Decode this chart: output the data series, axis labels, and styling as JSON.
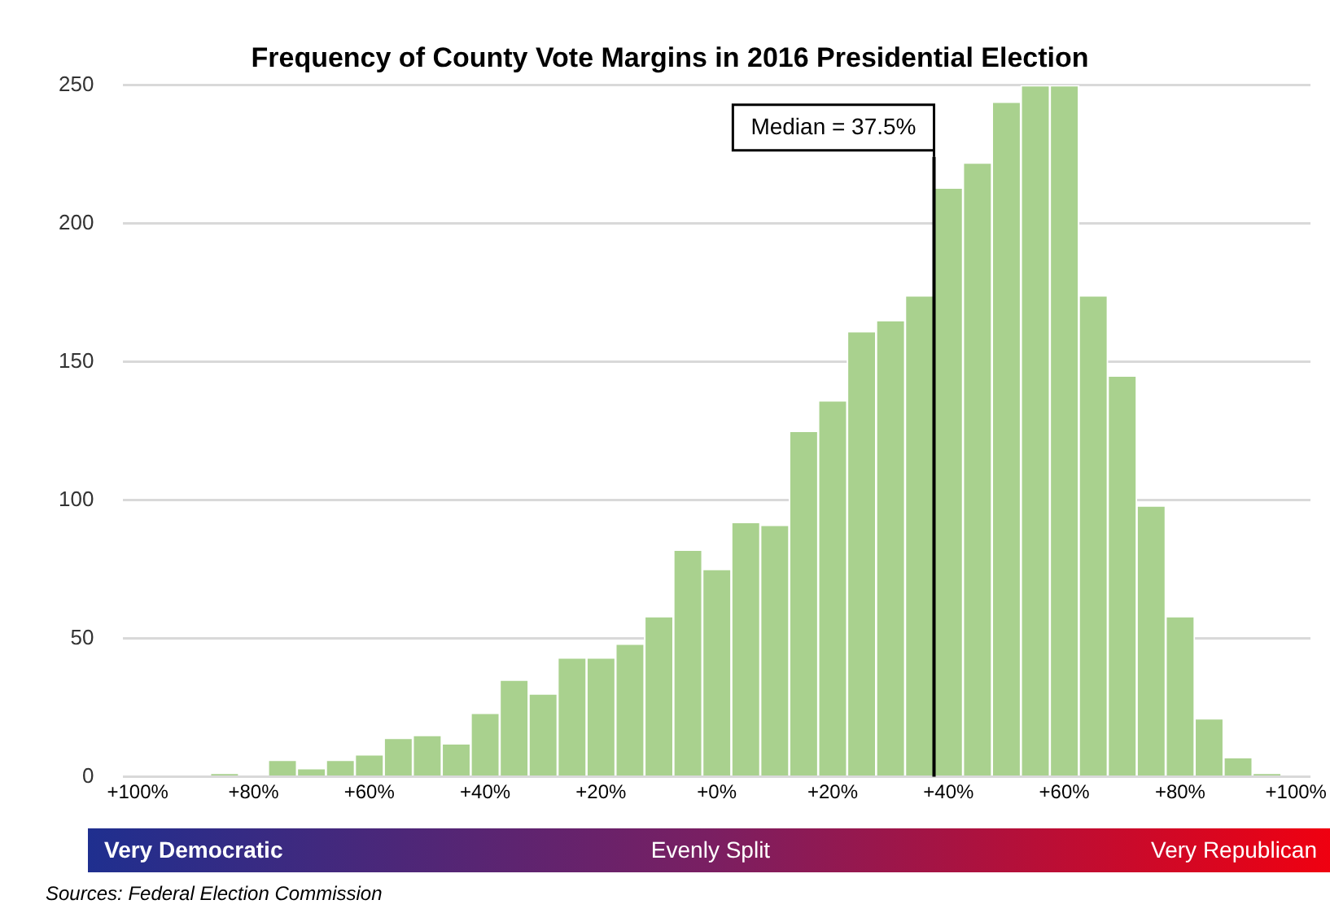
{
  "chart_data": {
    "type": "histogram",
    "title": "Frequency of County Vote Margins in 2016 Presidential Election",
    "bins": [
      -102.5,
      -97.5,
      -92.5,
      -87.5,
      -82.5,
      -77.5,
      -72.5,
      -67.5,
      -62.5,
      -57.5,
      -52.5,
      -47.5,
      -42.5,
      -37.5,
      -32.5,
      -27.5,
      -22.5,
      -17.5,
      -12.5,
      -7.5,
      -2.5,
      2.5,
      7.5,
      12.5,
      17.5,
      22.5,
      27.5,
      32.5,
      37.5,
      42.5,
      47.5,
      52.5,
      57.5,
      62.5,
      67.5,
      72.5,
      77.5,
      82.5,
      87.5,
      92.5,
      97.5,
      102.5
    ],
    "values": [
      0,
      0,
      0,
      1,
      0,
      6,
      3,
      6,
      8,
      14,
      15,
      12,
      23,
      35,
      30,
      43,
      43,
      48,
      58,
      82,
      75,
      92,
      91,
      125,
      136,
      161,
      165,
      174,
      213,
      222,
      244,
      250,
      250,
      174,
      145,
      98,
      58,
      21,
      7,
      1,
      0
    ],
    "color": "#a9d18e",
    "xlim": [
      -102.5,
      102.5
    ],
    "xticks": [
      {
        "value": -100,
        "label": "+100%"
      },
      {
        "value": -80,
        "label": "+80%"
      },
      {
        "value": -60,
        "label": "+60%"
      },
      {
        "value": -40,
        "label": "+40%"
      },
      {
        "value": -20,
        "label": "+20%"
      },
      {
        "value": 0,
        "label": "+0%"
      },
      {
        "value": 20,
        "label": "+20%"
      },
      {
        "value": 40,
        "label": "+40%"
      },
      {
        "value": 60,
        "label": "+60%"
      },
      {
        "value": 80,
        "label": "+80%"
      },
      {
        "value": 100,
        "label": "+100%"
      }
    ],
    "ylim": [
      0,
      250
    ],
    "yticks": [
      0,
      50,
      100,
      150,
      200,
      250
    ],
    "grid": "y",
    "legend": false,
    "ref_lines": [
      {
        "axis": "x",
        "value": 37.5,
        "label": "Median = 37.5%",
        "color": "#000000"
      }
    ],
    "annotations": [
      "Very Democratic",
      "Evenly Split",
      "Very Republican",
      "Sources: Federal Election Commission"
    ]
  }
}
